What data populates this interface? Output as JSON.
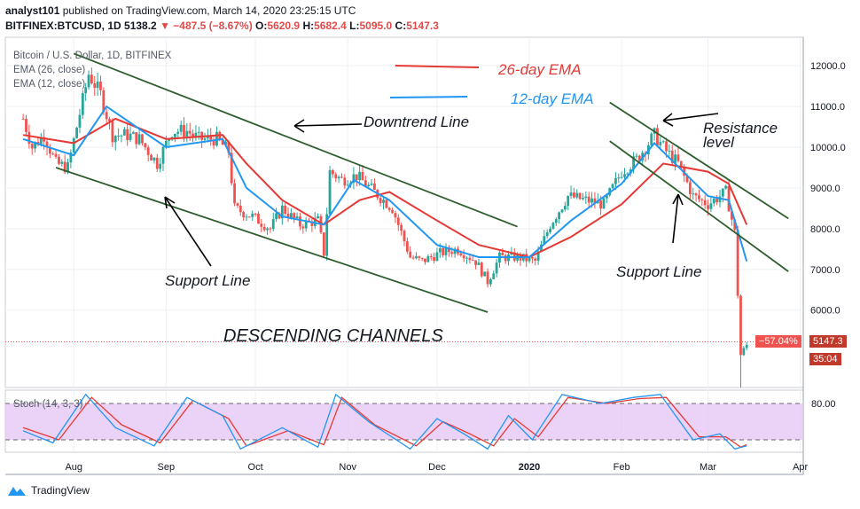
{
  "header": {
    "publisher_user": "analyst101",
    "publisher_rest": "published on TradingView.com, March 14, 2020 23:25:15 UTC",
    "symbol": "BITFINEX:BTCUSD, 1D",
    "last": "5138.2",
    "change": "−487.5 (−8.67%)",
    "open_label": "O:",
    "open": "5620.9",
    "high_label": "H:",
    "high": "5682.4",
    "low_label": "L:",
    "low": "5095.0",
    "close_label": "C:",
    "close": "5147.3"
  },
  "legend": {
    "title": "Bitcoin / U.S. Dollar, 1D, BITFINEX",
    "ema26": "EMA (26, close)",
    "ema12": "EMA (12, close)"
  },
  "price_tags": {
    "pct": "−57.04%",
    "price": "5147.3",
    "countdown": "35:04"
  },
  "annotations": {
    "ema26_label": "26-day EMA",
    "ema12_label": "12-day EMA",
    "downtrend": "Downtrend Line",
    "resistance_1": "Resistance",
    "resistance_2": "level",
    "support_left": "Support Line",
    "support_right": "Support Line",
    "channels": "DESCENDING CHANNELS"
  },
  "stoch": {
    "label": "Stoch (14, 3, 3)",
    "upper": "80.00",
    "upper_value": 80,
    "lower_value": 20
  },
  "footer": {
    "brand": "TradingView"
  },
  "colors": {
    "up": "#26a69a",
    "down": "#ef5350",
    "ema26": "#e53935",
    "ema12": "#2196f3",
    "trend": "#2e5e2e",
    "stoch_fill": "#e6c8f5",
    "stoch_k": "#2196f3",
    "stoch_d": "#e53935"
  },
  "chart_data": {
    "type": "candlestick",
    "title": "Bitcoin / U.S. Dollar, 1D, BITFINEX",
    "ylim": [
      4100,
      12700
    ],
    "y_ticks": [
      12000,
      11000,
      10000,
      9000,
      8000,
      7000,
      6000
    ],
    "y_tick_labels": [
      "12000.0",
      "11000.0",
      "10000.0",
      "9000.0",
      "8000.0",
      "7000.0",
      "6000.0"
    ],
    "x_ticks": [
      "Aug",
      "Sep",
      "Oct",
      "Nov",
      "Dec",
      "2020",
      "Feb",
      "Mar",
      "Apr"
    ],
    "price_path": [
      [
        "2019-07-15",
        10700
      ],
      [
        "2019-07-18",
        10000
      ],
      [
        "2019-07-22",
        10300
      ],
      [
        "2019-07-26",
        9600
      ],
      [
        "2019-07-30",
        9500
      ],
      [
        "2019-08-02",
        10500
      ],
      [
        "2019-08-06",
        11800
      ],
      [
        "2019-08-10",
        11300
      ],
      [
        "2019-08-14",
        10300
      ],
      [
        "2019-08-19",
        10300
      ],
      [
        "2019-08-23",
        10200
      ],
      [
        "2019-08-29",
        9600
      ],
      [
        "2019-09-03",
        10400
      ],
      [
        "2019-09-08",
        10400
      ],
      [
        "2019-09-12",
        10200
      ],
      [
        "2019-09-18",
        10200
      ],
      [
        "2019-09-22",
        9900
      ],
      [
        "2019-09-24",
        8500
      ],
      [
        "2019-09-30",
        8300
      ],
      [
        "2019-10-06",
        8000
      ],
      [
        "2019-10-10",
        8500
      ],
      [
        "2019-10-16",
        8100
      ],
      [
        "2019-10-22",
        8200
      ],
      [
        "2019-10-24",
        7400
      ],
      [
        "2019-10-26",
        9400
      ],
      [
        "2019-10-30",
        9200
      ],
      [
        "2019-11-04",
        9300
      ],
      [
        "2019-11-10",
        8900
      ],
      [
        "2019-11-16",
        8500
      ],
      [
        "2019-11-22",
        7300
      ],
      [
        "2019-11-26",
        7200
      ],
      [
        "2019-12-02",
        7400
      ],
      [
        "2019-12-08",
        7500
      ],
      [
        "2019-12-14",
        7200
      ],
      [
        "2019-12-18",
        6700
      ],
      [
        "2019-12-22",
        7300
      ],
      [
        "2019-12-28",
        7300
      ],
      [
        "2020-01-03",
        7200
      ],
      [
        "2020-01-08",
        8100
      ],
      [
        "2020-01-14",
        8800
      ],
      [
        "2020-01-20",
        8700
      ],
      [
        "2020-01-26",
        8600
      ],
      [
        "2020-02-01",
        9400
      ],
      [
        "2020-02-06",
        9700
      ],
      [
        "2020-02-12",
        10300
      ],
      [
        "2020-02-16",
        9900
      ],
      [
        "2020-02-20",
        9600
      ],
      [
        "2020-02-25",
        8800
      ],
      [
        "2020-03-01",
        8600
      ],
      [
        "2020-03-07",
        8900
      ],
      [
        "2020-03-10",
        7900
      ],
      [
        "2020-03-12",
        4900
      ],
      [
        "2020-03-14",
        5147
      ]
    ],
    "ema26": [
      [
        "2019-07-15",
        10300
      ],
      [
        "2019-08-01",
        10100
      ],
      [
        "2019-08-15",
        10700
      ],
      [
        "2019-09-01",
        10200
      ],
      [
        "2019-09-20",
        10300
      ],
      [
        "2019-09-28",
        9600
      ],
      [
        "2019-10-10",
        8700
      ],
      [
        "2019-10-24",
        8100
      ],
      [
        "2019-11-05",
        8700
      ],
      [
        "2019-11-15",
        8900
      ],
      [
        "2019-12-01",
        8200
      ],
      [
        "2019-12-15",
        7600
      ],
      [
        "2020-01-01",
        7300
      ],
      [
        "2020-01-15",
        7800
      ],
      [
        "2020-02-01",
        8600
      ],
      [
        "2020-02-15",
        9600
      ],
      [
        "2020-03-01",
        9400
      ],
      [
        "2020-03-08",
        9100
      ],
      [
        "2020-03-14",
        8100
      ]
    ],
    "ema12": [
      [
        "2019-07-15",
        10200
      ],
      [
        "2019-08-01",
        9800
      ],
      [
        "2019-08-12",
        11000
      ],
      [
        "2019-09-01",
        10000
      ],
      [
        "2019-09-20",
        10200
      ],
      [
        "2019-09-28",
        9000
      ],
      [
        "2019-10-10",
        8300
      ],
      [
        "2019-10-24",
        8100
      ],
      [
        "2019-11-03",
        9200
      ],
      [
        "2019-11-15",
        8700
      ],
      [
        "2019-12-01",
        7600
      ],
      [
        "2019-12-15",
        7300
      ],
      [
        "2020-01-01",
        7300
      ],
      [
        "2020-01-15",
        8200
      ],
      [
        "2020-02-01",
        9100
      ],
      [
        "2020-02-12",
        10100
      ],
      [
        "2020-03-01",
        8800
      ],
      [
        "2020-03-08",
        8700
      ],
      [
        "2020-03-14",
        7200
      ]
    ],
    "stoch_k": [
      [
        "2019-07-15",
        35
      ],
      [
        "2019-07-25",
        15
      ],
      [
        "2019-08-05",
        95
      ],
      [
        "2019-08-15",
        40
      ],
      [
        "2019-08-28",
        10
      ],
      [
        "2019-09-08",
        90
      ],
      [
        "2019-09-20",
        60
      ],
      [
        "2019-09-26",
        5
      ],
      [
        "2019-10-10",
        40
      ],
      [
        "2019-10-22",
        8
      ],
      [
        "2019-10-28",
        95
      ],
      [
        "2019-11-08",
        50
      ],
      [
        "2019-11-22",
        5
      ],
      [
        "2019-12-01",
        55
      ],
      [
        "2019-12-10",
        30
      ],
      [
        "2019-12-18",
        5
      ],
      [
        "2019-12-25",
        60
      ],
      [
        "2020-01-02",
        20
      ],
      [
        "2020-01-12",
        95
      ],
      [
        "2020-01-25",
        80
      ],
      [
        "2020-02-05",
        90
      ],
      [
        "2020-02-14",
        95
      ],
      [
        "2020-02-25",
        20
      ],
      [
        "2020-03-05",
        30
      ],
      [
        "2020-03-10",
        5
      ],
      [
        "2020-03-14",
        10
      ]
    ],
    "stoch_d": [
      [
        "2019-07-15",
        40
      ],
      [
        "2019-07-27",
        20
      ],
      [
        "2019-08-07",
        90
      ],
      [
        "2019-08-17",
        45
      ],
      [
        "2019-08-30",
        15
      ],
      [
        "2019-09-10",
        85
      ],
      [
        "2019-09-22",
        55
      ],
      [
        "2019-09-28",
        10
      ],
      [
        "2019-10-12",
        35
      ],
      [
        "2019-10-24",
        12
      ],
      [
        "2019-10-30",
        90
      ],
      [
        "2019-11-10",
        45
      ],
      [
        "2019-11-24",
        10
      ],
      [
        "2019-12-03",
        50
      ],
      [
        "2019-12-12",
        30
      ],
      [
        "2019-12-20",
        10
      ],
      [
        "2019-12-27",
        55
      ],
      [
        "2020-01-04",
        25
      ],
      [
        "2020-01-14",
        90
      ],
      [
        "2020-01-27",
        80
      ],
      [
        "2020-02-07",
        88
      ],
      [
        "2020-02-16",
        90
      ],
      [
        "2020-02-27",
        25
      ],
      [
        "2020-03-07",
        25
      ],
      [
        "2020-03-12",
        8
      ],
      [
        "2020-03-14",
        12
      ]
    ],
    "trend_lines": [
      {
        "name": "downtrend-line",
        "from": [
          "2019-08-01",
          12300
        ],
        "to": [
          "2019-12-28",
          8050
        ]
      },
      {
        "name": "support-line-left",
        "from": [
          "2019-07-26",
          9500
        ],
        "to": [
          "2019-12-18",
          5950
        ]
      },
      {
        "name": "resistance-line",
        "from": [
          "2020-01-28",
          11100
        ],
        "to": [
          "2020-03-28",
          8250
        ]
      },
      {
        "name": "support-line-right",
        "from": [
          "2020-01-28",
          10150
        ],
        "to": [
          "2020-03-28",
          6950
        ]
      }
    ],
    "crash_low": 3850
  }
}
